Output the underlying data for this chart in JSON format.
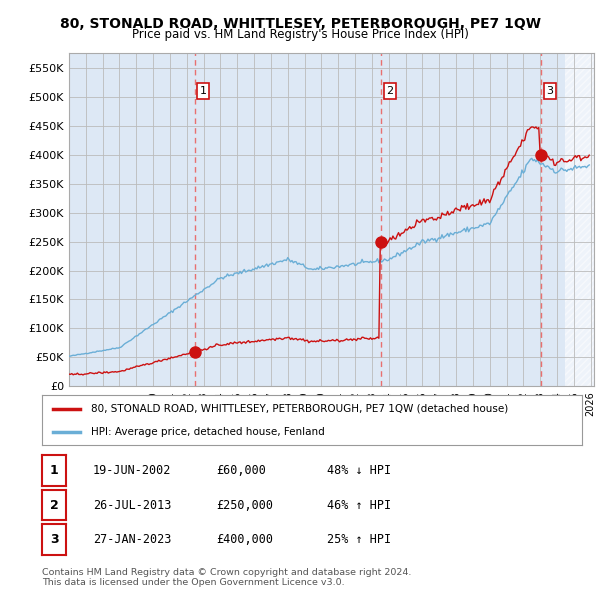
{
  "title": "80, STONALD ROAD, WHITTLESEY, PETERBOROUGH, PE7 1QW",
  "subtitle": "Price paid vs. HM Land Registry's House Price Index (HPI)",
  "ylim": [
    0,
    575000
  ],
  "yticks": [
    0,
    50000,
    100000,
    150000,
    200000,
    250000,
    300000,
    350000,
    400000,
    450000,
    500000,
    550000
  ],
  "ytick_labels": [
    "£0",
    "£50K",
    "£100K",
    "£150K",
    "£200K",
    "£250K",
    "£300K",
    "£350K",
    "£400K",
    "£450K",
    "£500K",
    "£550K"
  ],
  "hpi_color": "#6aaed6",
  "price_color": "#cc1111",
  "vline_color": "#e87070",
  "sale_year_floats": [
    2002.46,
    2013.56,
    2023.07
  ],
  "sale_prices": [
    60000,
    250000,
    400000
  ],
  "sale_labels": [
    "1",
    "2",
    "3"
  ],
  "legend_price_label": "80, STONALD ROAD, WHITTLESEY, PETERBOROUGH, PE7 1QW (detached house)",
  "legend_hpi_label": "HPI: Average price, detached house, Fenland",
  "table_rows": [
    [
      "1",
      "19-JUN-2002",
      "£60,000",
      "48% ↓ HPI"
    ],
    [
      "2",
      "26-JUL-2013",
      "£250,000",
      "46% ↑ HPI"
    ],
    [
      "3",
      "27-JAN-2023",
      "£400,000",
      "25% ↑ HPI"
    ]
  ],
  "footer": "Contains HM Land Registry data © Crown copyright and database right 2024.\nThis data is licensed under the Open Government Licence v3.0.",
  "background_color": "#ffffff",
  "plot_bg_color": "#dde8f5",
  "grid_color": "#bbbbbb",
  "hatch_color": "#c0cce0"
}
